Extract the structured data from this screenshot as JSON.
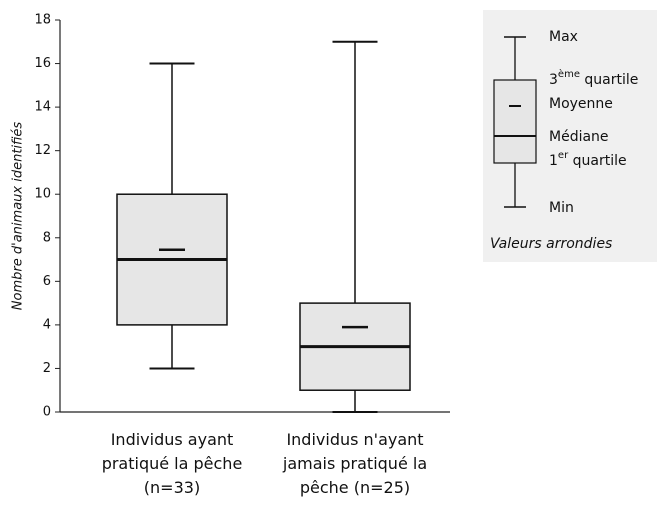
{
  "chart_data": {
    "type": "box",
    "y_label": "Nombre d'animaux identifiés",
    "categories": [
      "Individus ayant pratiqué la pêche (n=33)",
      "Individus n'ayant jamais pratiqué la pêche (n=25)"
    ],
    "boxes": [
      {
        "min": 2,
        "q1": 4,
        "median": 7,
        "q3": 10,
        "max": 16,
        "mean": 7.45
      },
      {
        "min": 0,
        "q1": 1,
        "median": 3,
        "q3": 5,
        "max": 17,
        "mean": 3.9
      }
    ],
    "color": "#e6e6e6",
    "ylim": [
      0,
      18
    ],
    "yticks": [
      0,
      2,
      4,
      6,
      8,
      10,
      12,
      14,
      16,
      18
    ],
    "legend": {
      "max": "Max",
      "q3": [
        "3",
        "ème",
        " quartile"
      ],
      "mean": "Moyenne",
      "median": "Médiane",
      "q1": [
        "1",
        "er",
        " quartile"
      ],
      "min": "Min",
      "note": "Valeurs arrondies"
    }
  }
}
